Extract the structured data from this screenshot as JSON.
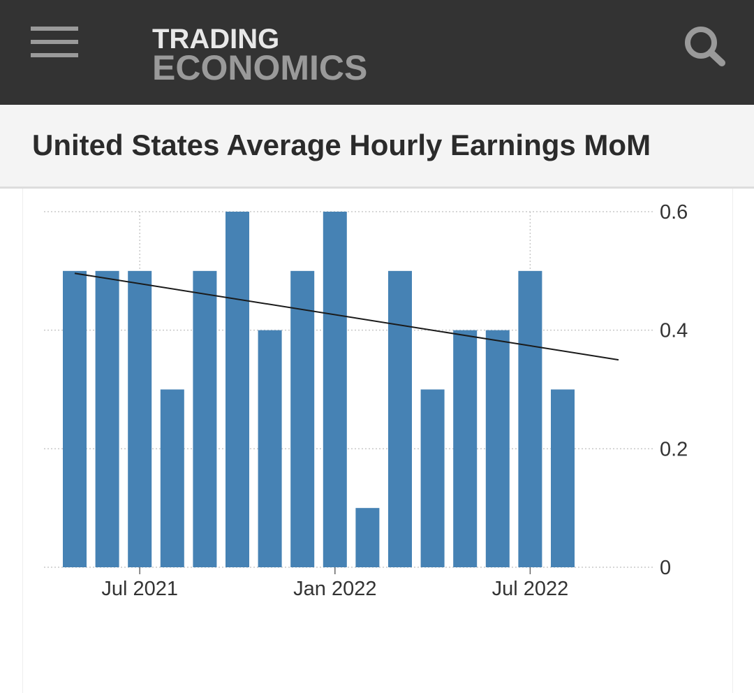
{
  "header": {
    "logo_line1": "TRADING",
    "logo_line2": "ECONOMICS",
    "menu_icon": "hamburger-menu-icon",
    "search_icon": "search-icon",
    "background_color": "#333333"
  },
  "page": {
    "title": "United States Average Hourly Earnings MoM"
  },
  "chart_data": {
    "type": "bar",
    "categories": [
      "2021-05",
      "2021-06",
      "2021-07",
      "2021-08",
      "2021-09",
      "2021-10",
      "2021-11",
      "2021-12",
      "2022-01",
      "2022-02",
      "2022-03",
      "2022-04",
      "2022-05",
      "2022-06",
      "2022-07",
      "2022-08"
    ],
    "series": [
      {
        "values": [
          0.5,
          0.5,
          0.5,
          0.3,
          0.5,
          0.6,
          0.4,
          0.5,
          0.6,
          0.1,
          0.5,
          0.3,
          0.4,
          0.4,
          0.5,
          0.3
        ]
      }
    ],
    "trend_line": {
      "start": 0.496,
      "end": 0.35
    },
    "x_tick_labels": [
      {
        "category": "2021-07",
        "label": "Jul 2021"
      },
      {
        "category": "2022-01",
        "label": "Jan 2022"
      },
      {
        "category": "2022-07",
        "label": "Jul 2022"
      }
    ],
    "y_ticks": [
      {
        "value": 0,
        "label": "0"
      },
      {
        "value": 0.2,
        "label": "0.2"
      },
      {
        "value": 0.4,
        "label": "0.4"
      },
      {
        "value": 0.6,
        "label": "0.6"
      }
    ],
    "ylim": [
      0,
      0.6
    ],
    "y_axis_position": "right",
    "grid": true,
    "bar_color": "#4682b4",
    "trend_color": "#1a1a1a",
    "grid_color": "#c8c8c8"
  }
}
